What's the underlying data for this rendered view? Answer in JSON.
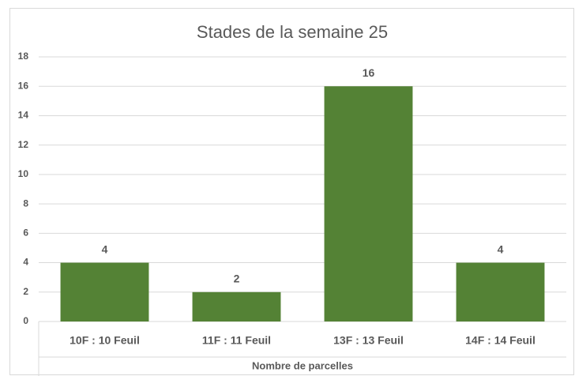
{
  "chart_data": {
    "type": "bar",
    "title": "Stades de la semaine 25",
    "categories": [
      "10F : 10 Feuil",
      "11F : 11 Feuil",
      "13F : 13 Feuil",
      "14F : 14 Feuil"
    ],
    "values": [
      4,
      2,
      16,
      4
    ],
    "color": "#548235",
    "x_label": "Nombre de parcelles",
    "ylim": [
      0,
      18
    ],
    "yticks": [
      0,
      2,
      4,
      6,
      8,
      10,
      12,
      14,
      16,
      18
    ],
    "grid": true
  }
}
